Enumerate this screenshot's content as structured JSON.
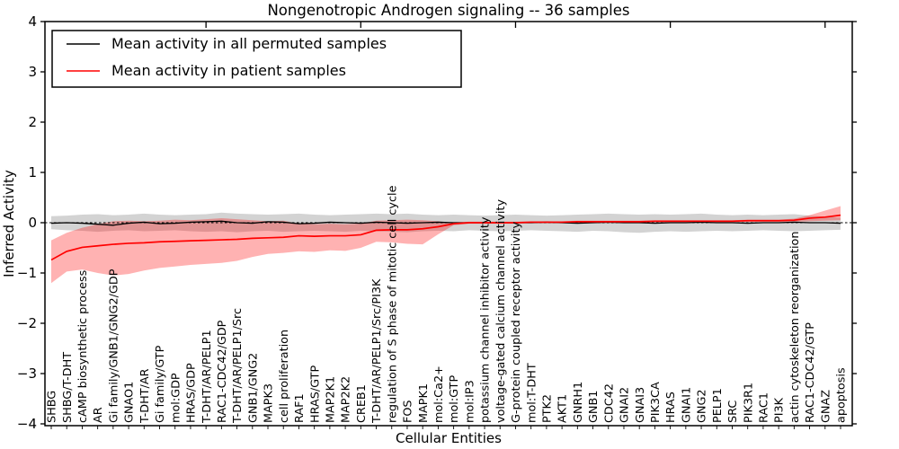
{
  "chart_data": {
    "type": "line",
    "title": "Nongenotropic Androgen signaling -- 36 samples",
    "xlabel": "Cellular Entities",
    "ylabel": "Inferred Activity",
    "ylim": [
      -4,
      4
    ],
    "yticks": [
      -4,
      -3,
      -2,
      -1,
      0,
      1,
      2,
      3,
      4
    ],
    "grid": false,
    "legend_position": "upper left",
    "zero_line": {
      "style": "dashed",
      "color": "#000000",
      "y": 0
    },
    "categories": [
      "SHBG",
      "SHBG/T-DHT",
      "cAMP biosynthetic process",
      "AR",
      "Gi family/GNB1/GNG2/GDP",
      "GNAO1",
      "T-DHT/AR",
      "Gi family/GTP",
      "mol:GDP",
      "HRAS/GDP",
      "T-DHT/AR/PELP1",
      "RAC1-CDC42/GDP",
      "T-DHT/AR/PELP1/Src",
      "GNB1/GNG2",
      "MAPK3",
      "cell proliferation",
      "RAF1",
      "HRAS/GTP",
      "MAP2K1",
      "MAP2K2",
      "CREB1",
      "T-DHT/AR/PELP1/Src/PI3K",
      "regulation of S phase of mitotic cell cycle",
      "FOS",
      "MAPK1",
      "mol:Ca2+",
      "mol:GTP",
      "mol:IP3",
      "potassium channel inhibitor activity",
      "voltage-gated calcium channel activity",
      "G-protein coupled receptor activity",
      "mol:T-DHT",
      "PTK2",
      "AKT1",
      "GNRH1",
      "GNB1",
      "CDC42",
      "GNAI2",
      "GNAI3",
      "PIK3CA",
      "HRAS",
      "GNAI1",
      "GNG2",
      "PELP1",
      "SRC",
      "PIK3R1",
      "RAC1",
      "PI3K",
      "actin cytoskeleton reorganization",
      "RAC1-CDC42/GTP",
      "GNAZ",
      "apoptosis"
    ],
    "series": [
      {
        "name": "Mean activity in all permuted samples",
        "color": "#000000",
        "band_color": "#808080",
        "band_opacity": 0.35,
        "values": [
          -0.01,
          0.0,
          -0.01,
          -0.03,
          -0.05,
          -0.01,
          0.01,
          -0.02,
          -0.01,
          0.01,
          0.02,
          0.03,
          0.0,
          -0.01,
          0.02,
          0.01,
          -0.02,
          -0.01,
          0.01,
          0.0,
          -0.01,
          0.01,
          0.0,
          -0.01,
          0.0,
          0.01,
          0.0,
          0.0,
          0.0,
          0.0,
          0.0,
          0.0,
          0.01,
          0.0,
          -0.01,
          0.0,
          0.01,
          0.0,
          0.0,
          -0.01,
          0.0,
          0.0,
          0.01,
          0.0,
          0.0,
          -0.01,
          0.0,
          0.0,
          0.01,
          0.0,
          0.0,
          -0.01
        ],
        "band_upper": [
          0.13,
          0.14,
          0.16,
          0.17,
          0.15,
          0.16,
          0.18,
          0.16,
          0.15,
          0.16,
          0.17,
          0.2,
          0.18,
          0.17,
          0.16,
          0.17,
          0.18,
          0.16,
          0.15,
          0.16,
          0.17,
          0.18,
          0.17,
          0.18,
          0.16,
          0.15,
          0.16,
          0.15,
          0.14,
          0.15,
          0.16,
          0.15,
          0.14,
          0.15,
          0.16,
          0.17,
          0.18,
          0.17,
          0.16,
          0.17,
          0.16,
          0.17,
          0.18,
          0.16,
          0.15,
          0.16,
          0.15,
          0.16,
          0.17,
          0.14,
          0.12,
          0.1
        ],
        "band_lower": [
          -0.13,
          -0.15,
          -0.16,
          -0.18,
          -0.16,
          -0.15,
          -0.17,
          -0.16,
          -0.15,
          -0.17,
          -0.18,
          -0.17,
          -0.19,
          -0.17,
          -0.16,
          -0.18,
          -0.17,
          -0.16,
          -0.17,
          -0.18,
          -0.16,
          -0.17,
          -0.18,
          -0.19,
          -0.17,
          -0.16,
          -0.17,
          -0.15,
          -0.16,
          -0.17,
          -0.16,
          -0.15,
          -0.16,
          -0.17,
          -0.18,
          -0.16,
          -0.17,
          -0.19,
          -0.2,
          -0.18,
          -0.17,
          -0.18,
          -0.17,
          -0.16,
          -0.17,
          -0.16,
          -0.15,
          -0.16,
          -0.17,
          -0.16,
          -0.15,
          -0.14
        ]
      },
      {
        "name": "Mean activity in patient samples",
        "color": "#ff0000",
        "band_color": "#ff0000",
        "band_opacity": 0.3,
        "values": [
          -0.74,
          -0.57,
          -0.49,
          -0.46,
          -0.43,
          -0.41,
          -0.4,
          -0.38,
          -0.37,
          -0.36,
          -0.35,
          -0.34,
          -0.33,
          -0.31,
          -0.3,
          -0.29,
          -0.26,
          -0.27,
          -0.26,
          -0.26,
          -0.24,
          -0.15,
          -0.14,
          -0.14,
          -0.12,
          -0.08,
          -0.02,
          0.0,
          0.0,
          0.0,
          0.0,
          0.01,
          0.01,
          0.01,
          0.02,
          0.02,
          0.02,
          0.02,
          0.02,
          0.03,
          0.03,
          0.03,
          0.03,
          0.03,
          0.03,
          0.04,
          0.04,
          0.04,
          0.05,
          0.09,
          0.11,
          0.15
        ],
        "band_upper": [
          -0.35,
          -0.2,
          -0.1,
          -0.03,
          0.03,
          0.04,
          0.03,
          0.04,
          0.06,
          0.05,
          0.07,
          0.09,
          0.07,
          0.05,
          0.03,
          0.04,
          -0.02,
          -0.03,
          -0.02,
          -0.03,
          -0.02,
          0.04,
          0.05,
          0.06,
          0.05,
          0.03,
          0.0,
          0.02,
          0.02,
          0.02,
          0.02,
          0.03,
          0.03,
          0.03,
          0.04,
          0.04,
          0.04,
          0.04,
          0.04,
          0.05,
          0.05,
          0.05,
          0.05,
          0.05,
          0.05,
          0.06,
          0.06,
          0.06,
          0.08,
          0.15,
          0.24,
          0.33
        ],
        "band_lower": [
          -1.2,
          -0.97,
          -0.93,
          -1.0,
          -1.05,
          -1.02,
          -0.95,
          -0.9,
          -0.87,
          -0.84,
          -0.82,
          -0.8,
          -0.76,
          -0.68,
          -0.62,
          -0.6,
          -0.57,
          -0.58,
          -0.55,
          -0.56,
          -0.5,
          -0.38,
          -0.39,
          -0.42,
          -0.43,
          -0.23,
          -0.05,
          -0.02,
          -0.02,
          -0.02,
          -0.02,
          -0.01,
          -0.01,
          -0.01,
          0.0,
          0.0,
          0.0,
          0.0,
          0.0,
          0.01,
          0.01,
          0.01,
          0.01,
          0.01,
          0.01,
          0.02,
          0.02,
          0.02,
          0.02,
          0.03,
          0.04,
          0.05
        ]
      }
    ]
  }
}
